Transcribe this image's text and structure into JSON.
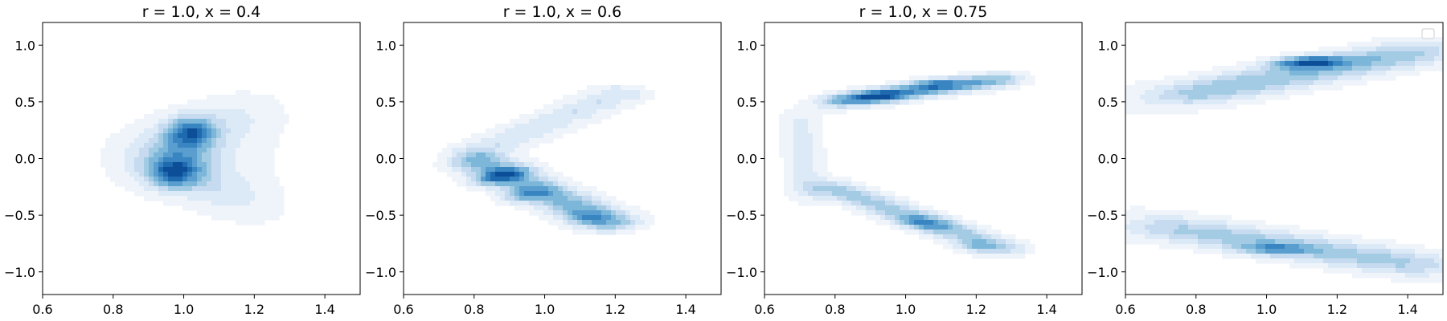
{
  "colors": {
    "colormap": [
      "#eff4fb",
      "#dce9f6",
      "#c6dbef",
      "#a3cbe3",
      "#7cb7da",
      "#5a9ecf",
      "#3885c1",
      "#1f6aaf",
      "#0c4f98"
    ],
    "axes": "#000000",
    "background": "#ffffff"
  },
  "chart_data": [
    {
      "type": "density-contour",
      "title": "r = 1.0, x = 0.4",
      "xlim": [
        0.6,
        1.5
      ],
      "ylim": [
        -1.2,
        1.2
      ],
      "xticks": [
        0.6,
        0.8,
        1.0,
        1.2,
        1.4
      ],
      "yticks": [
        -1.0,
        -0.5,
        0.0,
        0.5,
        1.0
      ],
      "xtick_labels": [
        "0.6",
        "0.8",
        "1.0",
        "1.2",
        "1.4"
      ],
      "ytick_labels": [
        "−1.0",
        "−0.5",
        "0.0",
        "0.5",
        "1.0"
      ],
      "filled_levels": 9,
      "density_modes": [
        {
          "x": 1.02,
          "y": 0.24
        },
        {
          "x": 0.97,
          "y": -0.13
        }
      ],
      "support": {
        "x": [
          0.76,
          1.32
        ],
        "y": [
          -0.68,
          0.63
        ]
      },
      "legend": false
    },
    {
      "type": "density-contour",
      "title": "r = 1.0, x = 0.6",
      "xlim": [
        0.6,
        1.5
      ],
      "ylim": [
        -1.2,
        1.2
      ],
      "xticks": [
        0.6,
        0.8,
        1.0,
        1.2,
        1.4
      ],
      "yticks": [
        -1.0,
        -0.5,
        0.0,
        0.5,
        1.0
      ],
      "xtick_labels": [
        "0.6",
        "0.8",
        "1.0",
        "1.2",
        "1.4"
      ],
      "ytick_labels": [
        "−1.0",
        "−0.5",
        "0.0",
        "0.5",
        "1.0"
      ],
      "filled_levels": 9,
      "density_modes": [
        {
          "x": 0.88,
          "y": -0.15
        }
      ],
      "support": {
        "x": [
          0.72,
          1.29
        ],
        "y": [
          -0.72,
          0.68
        ]
      },
      "legend": false
    },
    {
      "type": "density-contour",
      "title": "r = 1.0, x = 0.75",
      "xlim": [
        0.6,
        1.5
      ],
      "ylim": [
        -1.2,
        1.2
      ],
      "xticks": [
        0.6,
        0.8,
        1.0,
        1.2,
        1.4
      ],
      "yticks": [
        -1.0,
        -0.5,
        0.0,
        0.5,
        1.0
      ],
      "xtick_labels": [
        "0.6",
        "0.8",
        "1.0",
        "1.2",
        "1.4"
      ],
      "ytick_labels": [
        "−1.0",
        "−0.5",
        "0.0",
        "0.5",
        "1.0"
      ],
      "filled_levels": 9,
      "density_modes": [
        {
          "x": 0.92,
          "y": 0.55
        },
        {
          "x": 1.08,
          "y": 0.66
        },
        {
          "x": 1.05,
          "y": -0.57
        },
        {
          "x": 1.2,
          "y": -0.78
        }
      ],
      "support": {
        "x": [
          0.64,
          1.36
        ],
        "y": [
          -0.9,
          0.85
        ]
      },
      "legend": false
    },
    {
      "type": "density-contour",
      "title": "",
      "xlim": [
        0.6,
        1.5
      ],
      "ylim": [
        -1.2,
        1.2
      ],
      "xticks": [
        0.6,
        0.8,
        1.0,
        1.2,
        1.4
      ],
      "yticks": [
        -1.0,
        -0.5,
        0.0,
        0.5,
        1.0
      ],
      "xtick_labels": [
        "0.6",
        "0.8",
        "1.0",
        "1.2",
        "1.4"
      ],
      "ytick_labels": [
        "−1.0",
        "−0.5",
        "0.0",
        "0.5",
        "1.0"
      ],
      "filled_levels": 9,
      "density_modes": [
        {
          "x": 1.12,
          "y": 0.85
        },
        {
          "x": 1.02,
          "y": -0.8
        }
      ],
      "support": {
        "x": [
          0.6,
          1.5
        ],
        "y": [
          -1.1,
          1.15
        ]
      },
      "legend": true,
      "legend_position": "top-right",
      "legend_entries": []
    }
  ]
}
